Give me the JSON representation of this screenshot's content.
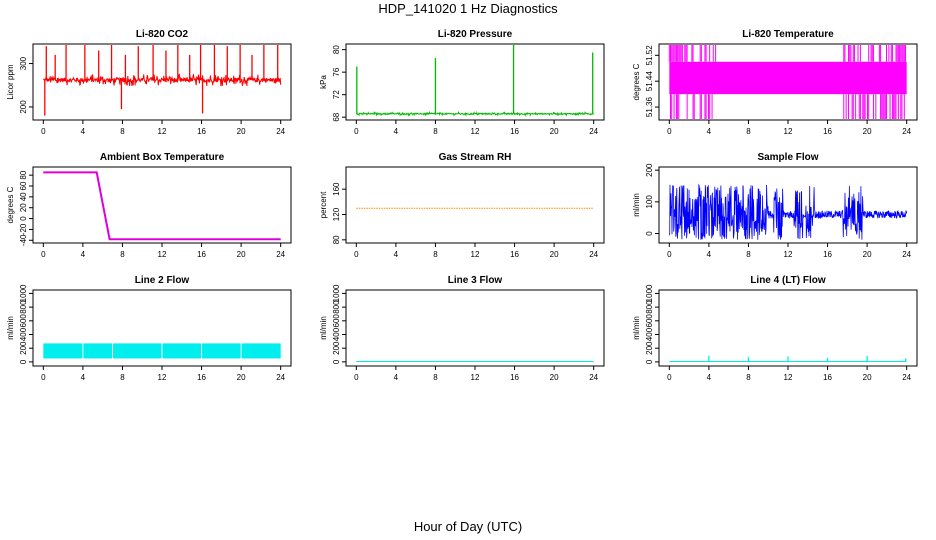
{
  "page": {
    "title": "HDP_141020 1 Hz Diagnostics",
    "xlabel": "Hour of Day (UTC)"
  },
  "chart_data": [
    {
      "id": "co2",
      "type": "line",
      "title": "Li-820 CO2",
      "xlabel": "",
      "ylabel": "Licor ppm",
      "color": "#ff0000",
      "xlim": [
        0,
        24
      ],
      "ylim": [
        170,
        345
      ],
      "xticks": [
        0,
        4,
        8,
        12,
        16,
        20,
        24
      ],
      "yticks": [
        200,
        300
      ],
      "baseline": 262,
      "noise": 14,
      "spikes": [
        [
          0.15,
          180
        ],
        [
          0.3,
          340
        ],
        [
          1.2,
          320
        ],
        [
          2.3,
          345
        ],
        [
          4.2,
          345
        ],
        [
          5.6,
          330
        ],
        [
          6.9,
          345
        ],
        [
          7.9,
          195
        ],
        [
          8.3,
          320
        ],
        [
          9.6,
          340
        ],
        [
          11.1,
          345
        ],
        [
          12.4,
          330
        ],
        [
          13.6,
          345
        ],
        [
          14.8,
          320
        ],
        [
          15.9,
          345
        ],
        [
          16.1,
          185
        ],
        [
          17.3,
          345
        ],
        [
          18.6,
          340
        ],
        [
          19.9,
          345
        ],
        [
          21.1,
          320
        ],
        [
          22.3,
          345
        ],
        [
          23.7,
          345
        ]
      ]
    },
    {
      "id": "pressure",
      "type": "line",
      "title": "Li-820 Pressure",
      "xlabel": "",
      "ylabel": "kPa",
      "color": "#00bb00",
      "xlim": [
        0,
        24
      ],
      "ylim": [
        67.5,
        81
      ],
      "xticks": [
        0,
        4,
        8,
        12,
        16,
        20,
        24
      ],
      "yticks": [
        68,
        72,
        76,
        80
      ],
      "yticklabels": [
        "68",
        "72",
        "76",
        "80"
      ],
      "baseline": 68.6,
      "noise": 0.25,
      "spikes": [
        [
          0.05,
          77
        ],
        [
          8.0,
          78.5
        ],
        [
          15.9,
          81
        ],
        [
          23.9,
          79.5
        ]
      ]
    },
    {
      "id": "licor-temp",
      "type": "band",
      "title": "Li-820 Temperature",
      "xlabel": "",
      "ylabel": "degrees C",
      "color": "#ff00ff",
      "xlim": [
        0,
        24
      ],
      "ylim": [
        51.32,
        51.555
      ],
      "xticks": [
        0,
        4,
        8,
        12,
        16,
        20,
        24
      ],
      "yticks": [
        51.36,
        51.44,
        51.52
      ],
      "yticklabels": [
        "51.36",
        "51.44",
        "51.52"
      ],
      "main_band": [
        51.4,
        51.5
      ],
      "high_level": 51.555,
      "low_level": 51.32
    },
    {
      "id": "box-temp",
      "type": "line",
      "title": "Ambient Box Temperature",
      "xlabel": "",
      "ylabel": "degrees C",
      "color": "#dd00dd",
      "xlim": [
        0,
        24
      ],
      "ylim": [
        -45,
        95
      ],
      "xticks": [
        0,
        4,
        8,
        12,
        16,
        20,
        24
      ],
      "yticks": [
        -40,
        -20,
        0,
        20,
        40,
        60,
        80
      ],
      "points": [
        [
          0,
          85
        ],
        [
          5.4,
          85
        ],
        [
          6.7,
          -38
        ],
        [
          24,
          -38
        ]
      ]
    },
    {
      "id": "gas-rh",
      "type": "line",
      "title": "Gas Stream RH",
      "xlabel": "",
      "ylabel": "percent",
      "color": "#ff8800",
      "xlim": [
        0,
        24
      ],
      "ylim": [
        75,
        195
      ],
      "xticks": [
        0,
        4,
        8,
        12,
        16,
        20,
        24
      ],
      "yticks": [
        80,
        120,
        160
      ],
      "points": [
        [
          0,
          130
        ],
        [
          24,
          130
        ]
      ]
    },
    {
      "id": "sample-flow",
      "type": "line",
      "title": "Sample Flow",
      "xlabel": "",
      "ylabel": "ml/min",
      "color": "#0000ff",
      "xlim": [
        0,
        24
      ],
      "ylim": [
        -30,
        210
      ],
      "xticks": [
        0,
        4,
        8,
        12,
        16,
        20,
        24
      ],
      "yticks": [
        0,
        100,
        200
      ],
      "baseline": 60,
      "noise_high": 95,
      "noise_low": 80,
      "calm_noise": 12
    },
    {
      "id": "line2-flow",
      "type": "band",
      "title": "Line 2 Flow",
      "xlabel": "",
      "ylabel": "ml/min",
      "color": "#00eeee",
      "xlim": [
        0,
        24
      ],
      "ylim": [
        -60,
        1050
      ],
      "xticks": [
        0,
        4,
        8,
        12,
        16,
        20,
        24
      ],
      "yticks": [
        0,
        200,
        400,
        600,
        800,
        1000
      ],
      "yticklabels": [
        "0",
        "200",
        "400",
        "600",
        "800",
        "1000"
      ],
      "main_band": [
        50,
        270
      ]
    },
    {
      "id": "line3-flow",
      "type": "line",
      "title": "Line 3 Flow",
      "xlabel": "",
      "ylabel": "ml/min",
      "color": "#00eeee",
      "xlim": [
        0,
        24
      ],
      "ylim": [
        -60,
        1050
      ],
      "xticks": [
        0,
        4,
        8,
        12,
        16,
        20,
        24
      ],
      "yticks": [
        0,
        200,
        400,
        600,
        800,
        1000
      ],
      "yticklabels": [
        "0",
        "200",
        "400",
        "600",
        "800",
        "1000"
      ],
      "points": [
        [
          0,
          5
        ],
        [
          24,
          5
        ]
      ]
    },
    {
      "id": "line4-flow",
      "type": "line",
      "title": "Line 4 (LT) Flow",
      "xlabel": "",
      "ylabel": "ml/min",
      "color": "#00eeee",
      "xlim": [
        0,
        24
      ],
      "ylim": [
        -60,
        1050
      ],
      "xticks": [
        0,
        4,
        8,
        12,
        16,
        20,
        24
      ],
      "yticks": [
        0,
        200,
        400,
        600,
        800,
        1000
      ],
      "yticklabels": [
        "0",
        "200",
        "400",
        "600",
        "800",
        "1000"
      ],
      "baseline": 5,
      "spikes": [
        [
          4,
          90
        ],
        [
          8,
          70
        ],
        [
          12,
          80
        ],
        [
          16,
          60
        ],
        [
          20,
          85
        ],
        [
          23.9,
          50
        ]
      ]
    }
  ]
}
